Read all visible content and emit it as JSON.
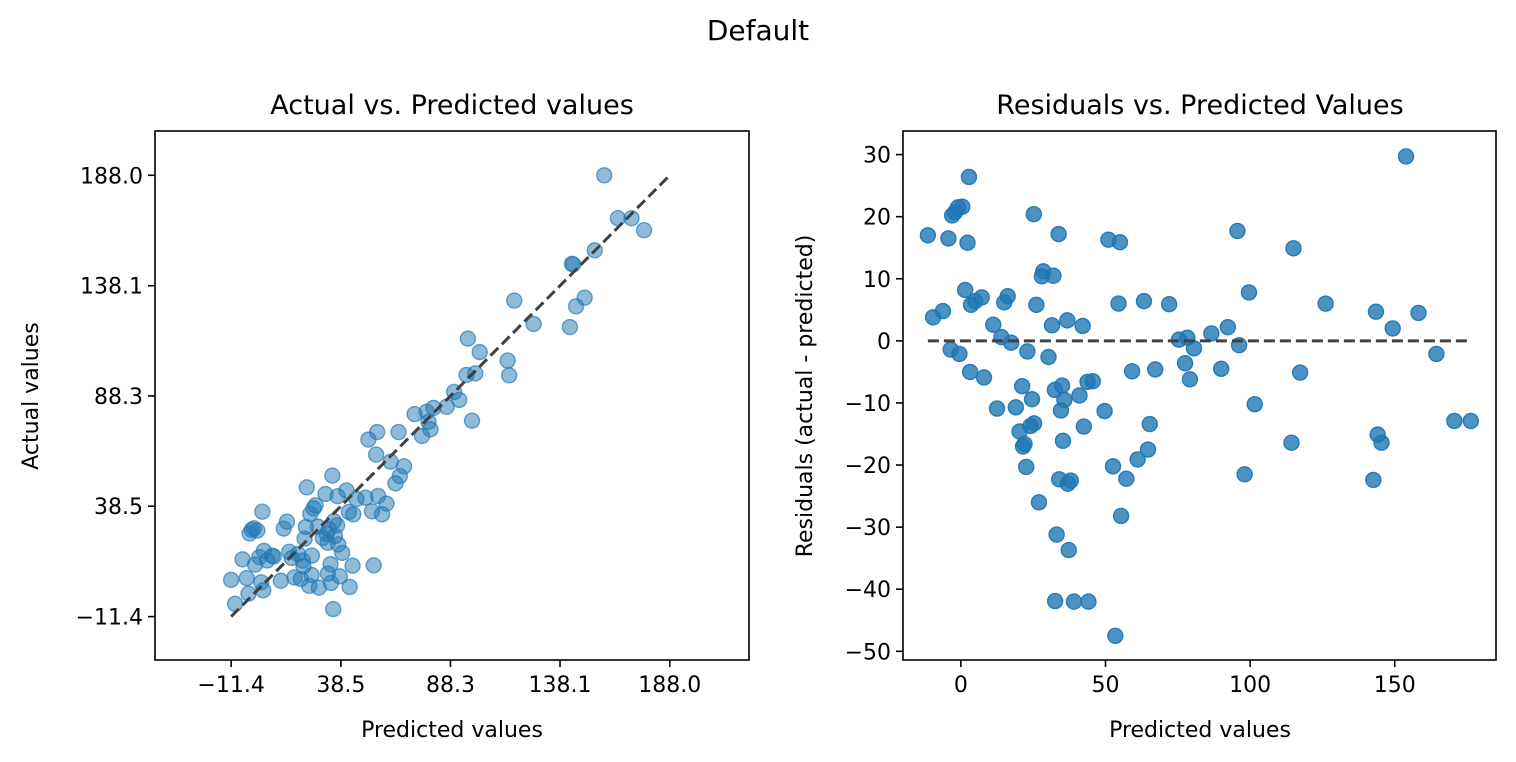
{
  "figure": {
    "suptitle": "Default"
  },
  "colors": {
    "points": "#1f77b4",
    "reference_line": "#404040"
  },
  "chart_data": [
    {
      "type": "scatter",
      "title": "Actual vs. Predicted values",
      "xlabel": "Predicted values",
      "ylabel": "Actual values",
      "xlim": [
        -46,
        224
      ],
      "ylim": [
        -31,
        208
      ],
      "x_ticks": [
        -11.4,
        38.5,
        88.3,
        138.1,
        188.0
      ],
      "x_tick_labels": [
        "−11.4",
        "38.5",
        "88.3",
        "138.1",
        "188.0"
      ],
      "y_ticks": [
        -11.4,
        38.5,
        88.3,
        138.1,
        188.0
      ],
      "y_tick_labels": [
        "−11.4",
        "38.5",
        "88.3",
        "138.1",
        "188.0"
      ],
      "reference_line": {
        "from": [
          -11.4,
          -11.4
        ],
        "to": [
          188.0,
          188.0
        ],
        "style": "dashed"
      },
      "marker_alpha": 0.5,
      "grid": false,
      "points": [
        [
          -11.4,
          5.2
        ],
        [
          -9.6,
          -5.6
        ],
        [
          -6.2,
          14.5
        ],
        [
          -4.3,
          6.0
        ],
        [
          -3.5,
          -1.0
        ],
        [
          -3.0,
          26.2
        ],
        [
          -2.0,
          27.8
        ],
        [
          -1.0,
          28.5
        ],
        [
          -0.5,
          12.1
        ],
        [
          0.5,
          27.5
        ],
        [
          1.5,
          15.5
        ],
        [
          2.3,
          4.1
        ],
        [
          2.8,
          36.0
        ],
        [
          3.2,
          0.5
        ],
        [
          3.5,
          18.3
        ],
        [
          5.0,
          14.0
        ],
        [
          7.2,
          16.1
        ],
        [
          8.0,
          15.8
        ],
        [
          11.2,
          4.8
        ],
        [
          12.5,
          28.4
        ],
        [
          14.0,
          31.5
        ],
        [
          15.0,
          17.9
        ],
        [
          16.2,
          15.1
        ],
        [
          17.4,
          6.3
        ],
        [
          19.0,
          16.9
        ],
        [
          20.3,
          5.6
        ],
        [
          21.2,
          13.9
        ],
        [
          21.5,
          11.4
        ],
        [
          22.0,
          23.8
        ],
        [
          22.6,
          29.1
        ],
        [
          23.0,
          47.0
        ],
        [
          24.1,
          2.5
        ],
        [
          24.6,
          35.0
        ],
        [
          25.2,
          7.4
        ],
        [
          25.3,
          16.2
        ],
        [
          26.1,
          37.5
        ],
        [
          27.0,
          38.9
        ],
        [
          28.0,
          29.3
        ],
        [
          28.5,
          1.7
        ],
        [
          30.3,
          24.1
        ],
        [
          31.5,
          44.0
        ],
        [
          32.0,
          26.0
        ],
        [
          32.5,
          22.0
        ],
        [
          32.6,
          8.0
        ],
        [
          33.1,
          28.1
        ],
        [
          33.8,
          12.3
        ],
        [
          34.0,
          3.8
        ],
        [
          34.6,
          52.3
        ],
        [
          35.0,
          -8.0
        ],
        [
          35.3,
          31.7
        ],
        [
          35.8,
          25.0
        ],
        [
          36.8,
          29.9
        ],
        [
          37.0,
          43.0
        ],
        [
          37.3,
          21.2
        ],
        [
          38.0,
          6.8
        ],
        [
          39.1,
          17.4
        ],
        [
          41.0,
          45.6
        ],
        [
          42.1,
          35.9
        ],
        [
          42.5,
          2.0
        ],
        [
          43.8,
          11.6
        ],
        [
          44.1,
          34.8
        ],
        [
          45.6,
          41.7
        ],
        [
          49.7,
          42.3
        ],
        [
          51.0,
          68.6
        ],
        [
          52.6,
          36.2
        ],
        [
          53.4,
          11.8
        ],
        [
          54.5,
          61.8
        ],
        [
          55.0,
          72.0
        ],
        [
          55.4,
          43.1
        ],
        [
          57.2,
          34.8
        ],
        [
          59.2,
          39.7
        ],
        [
          61.1,
          58.6
        ],
        [
          63.3,
          48.8
        ],
        [
          64.7,
          72.0
        ],
        [
          65.3,
          52.1
        ],
        [
          67.2,
          56.5
        ],
        [
          72.0,
          80.1
        ],
        [
          75.4,
          70.2
        ],
        [
          77.5,
          81.2
        ],
        [
          78.3,
          76.6
        ],
        [
          79.2,
          73.2
        ],
        [
          80.6,
          82.9
        ],
        [
          86.6,
          83.4
        ],
        [
          90.0,
          90.1
        ],
        [
          92.3,
          86.5
        ],
        [
          95.6,
          97.8
        ],
        [
          96.2,
          114.2
        ],
        [
          98.1,
          77.1
        ],
        [
          99.6,
          98.5
        ],
        [
          101.6,
          108.1
        ],
        [
          114.3,
          104.3
        ],
        [
          115.0,
          97.6
        ],
        [
          117.3,
          131.4
        ],
        [
          126.1,
          120.8
        ],
        [
          142.6,
          119.4
        ],
        [
          143.5,
          148.0
        ],
        [
          144.1,
          147.7
        ],
        [
          145.4,
          128.8
        ],
        [
          149.3,
          132.7
        ],
        [
          153.9,
          154.1
        ],
        [
          158.2,
          188.0
        ],
        [
          164.4,
          168.6
        ],
        [
          170.6,
          168.6
        ],
        [
          176.3,
          163.2
        ]
      ]
    },
    {
      "type": "scatter",
      "title": "Residuals vs. Predicted Values",
      "xlabel": "Predicted values",
      "ylabel": "Residuals (actual - predicted)",
      "xlim": [
        -20,
        185
      ],
      "ylim": [
        -51.4,
        33.8
      ],
      "x_ticks": [
        0,
        50,
        100,
        150
      ],
      "x_tick_labels": [
        "0",
        "50",
        "100",
        "150"
      ],
      "y_ticks": [
        30,
        20,
        10,
        0,
        -10,
        -20,
        -30,
        -40,
        -50
      ],
      "y_tick_labels": [
        "30",
        "20",
        "10",
        "0",
        "−10",
        "−20",
        "−30",
        "−40",
        "−50"
      ],
      "reference_line": {
        "from": [
          -11.4,
          0
        ],
        "to": [
          176.3,
          0
        ],
        "style": "dashed"
      },
      "marker_alpha": 0.8,
      "grid": false,
      "points": [
        [
          -11.4,
          17.0
        ],
        [
          -9.6,
          3.8
        ],
        [
          -6.2,
          4.8
        ],
        [
          -4.3,
          16.5
        ],
        [
          -3.5,
          -1.4
        ],
        [
          -3.0,
          20.2
        ],
        [
          -2.0,
          20.7
        ],
        [
          -1.0,
          21.5
        ],
        [
          -0.5,
          -2.1
        ],
        [
          0.5,
          21.6
        ],
        [
          1.5,
          8.2
        ],
        [
          2.3,
          15.8
        ],
        [
          2.8,
          26.4
        ],
        [
          3.2,
          -5.0
        ],
        [
          3.5,
          5.8
        ],
        [
          5.0,
          6.4
        ],
        [
          7.2,
          7.0
        ],
        [
          8.0,
          -5.9
        ],
        [
          11.2,
          2.6
        ],
        [
          12.5,
          -10.9
        ],
        [
          14.0,
          0.6
        ],
        [
          15.0,
          6.2
        ],
        [
          16.2,
          7.2
        ],
        [
          17.4,
          -0.3
        ],
        [
          19.0,
          -10.7
        ],
        [
          20.3,
          -14.6
        ],
        [
          21.2,
          -7.3
        ],
        [
          21.5,
          -17.0
        ],
        [
          22.0,
          -16.6
        ],
        [
          22.6,
          -20.3
        ],
        [
          23.0,
          -1.7
        ],
        [
          24.1,
          -13.7
        ],
        [
          24.6,
          -9.4
        ],
        [
          25.2,
          20.4
        ],
        [
          25.3,
          -13.3
        ],
        [
          26.1,
          5.8
        ],
        [
          27.0,
          -26.0
        ],
        [
          28.0,
          10.4
        ],
        [
          28.5,
          11.2
        ],
        [
          30.3,
          -2.6
        ],
        [
          31.5,
          2.5
        ],
        [
          32.0,
          10.5
        ],
        [
          32.5,
          -7.9
        ],
        [
          32.6,
          -41.9
        ],
        [
          33.1,
          -31.2
        ],
        [
          33.8,
          17.2
        ],
        [
          34.0,
          -22.3
        ],
        [
          34.6,
          -11.2
        ],
        [
          35.0,
          -7.2
        ],
        [
          35.3,
          -16.1
        ],
        [
          35.8,
          -9.5
        ],
        [
          36.8,
          3.3
        ],
        [
          37.0,
          -23.0
        ],
        [
          37.3,
          -33.7
        ],
        [
          38.0,
          -22.5
        ],
        [
          39.1,
          -42.0
        ],
        [
          41.0,
          -8.8
        ],
        [
          42.1,
          2.4
        ],
        [
          42.5,
          -13.8
        ],
        [
          43.8,
          -6.6
        ],
        [
          44.1,
          -42.0
        ],
        [
          45.6,
          -6.5
        ],
        [
          49.7,
          -11.3
        ],
        [
          51.0,
          16.3
        ],
        [
          52.6,
          -20.2
        ],
        [
          53.4,
          -47.5
        ],
        [
          54.5,
          6.0
        ],
        [
          55.0,
          15.9
        ],
        [
          55.4,
          -28.2
        ],
        [
          57.2,
          -22.2
        ],
        [
          59.2,
          -4.9
        ],
        [
          61.1,
          -19.1
        ],
        [
          63.3,
          6.4
        ],
        [
          64.7,
          -17.5
        ],
        [
          65.3,
          -13.4
        ],
        [
          67.2,
          -4.6
        ],
        [
          72.0,
          5.9
        ],
        [
          75.4,
          0.2
        ],
        [
          77.5,
          -3.6
        ],
        [
          78.3,
          0.5
        ],
        [
          79.2,
          -6.2
        ],
        [
          80.6,
          -1.2
        ],
        [
          86.6,
          1.2
        ],
        [
          90.0,
          -4.5
        ],
        [
          92.3,
          2.2
        ],
        [
          95.6,
          17.7
        ],
        [
          96.2,
          -0.7
        ],
        [
          98.1,
          -21.5
        ],
        [
          99.6,
          7.8
        ],
        [
          101.6,
          -10.2
        ],
        [
          114.3,
          -16.4
        ],
        [
          115.0,
          14.9
        ],
        [
          117.3,
          -5.1
        ],
        [
          126.1,
          6.0
        ],
        [
          142.6,
          -22.4
        ],
        [
          143.5,
          4.7
        ],
        [
          144.1,
          -15.1
        ],
        [
          145.4,
          -16.4
        ],
        [
          149.3,
          2.0
        ],
        [
          153.9,
          29.7
        ],
        [
          158.2,
          4.5
        ],
        [
          164.4,
          -2.1
        ],
        [
          170.6,
          -12.9
        ],
        [
          176.3,
          -12.9
        ]
      ]
    }
  ]
}
